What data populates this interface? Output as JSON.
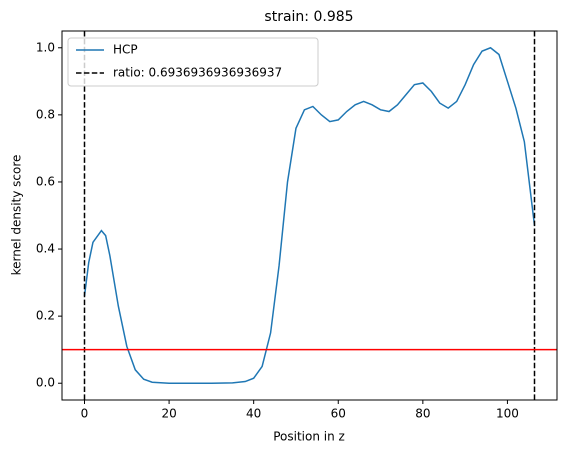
{
  "chart_data": {
    "type": "line",
    "title": "strain: 0.985",
    "xlabel": "Position in z",
    "ylabel": "kernel density score",
    "xlim": [
      -5.32,
      111.72
    ],
    "ylim": [
      -0.05,
      1.05
    ],
    "xticks": [
      0,
      20,
      40,
      60,
      80,
      100
    ],
    "yticks": [
      {
        "value": 0,
        "label": "0.0"
      },
      0.2,
      0.4,
      0.6,
      0.8,
      {
        "value": 1,
        "label": "1.0"
      }
    ],
    "legend": "upper left",
    "series": [
      {
        "name": "HCP",
        "color": "#1f77b4",
        "x": [
          0,
          1,
          2,
          4,
          5,
          6,
          8,
          10,
          12,
          14,
          16,
          20,
          25,
          30,
          35,
          38,
          40,
          42,
          44,
          46,
          48,
          50,
          52,
          54,
          56,
          58,
          60,
          62,
          64,
          66,
          68,
          70,
          72,
          74,
          76,
          78,
          80,
          82,
          84,
          86,
          88,
          90,
          92,
          94,
          96,
          98,
          100,
          102,
          104,
          106.4
        ],
        "values": [
          0.26,
          0.36,
          0.42,
          0.455,
          0.44,
          0.38,
          0.23,
          0.11,
          0.04,
          0.012,
          0.003,
          0,
          0,
          0,
          0.001,
          0.005,
          0.015,
          0.05,
          0.15,
          0.35,
          0.6,
          0.76,
          0.815,
          0.825,
          0.8,
          0.78,
          0.785,
          0.81,
          0.83,
          0.84,
          0.83,
          0.815,
          0.81,
          0.83,
          0.86,
          0.89,
          0.895,
          0.87,
          0.835,
          0.82,
          0.84,
          0.89,
          0.95,
          0.99,
          1.0,
          0.98,
          0.9,
          0.82,
          0.72,
          0.47
        ]
      },
      {
        "name": "ratio: 0.6936936936936937",
        "color": "#000000",
        "style": "dashed",
        "vlines": [
          0,
          106.4
        ]
      }
    ],
    "hlines": [
      {
        "value": 0.1,
        "color": "#ff0000"
      }
    ]
  }
}
